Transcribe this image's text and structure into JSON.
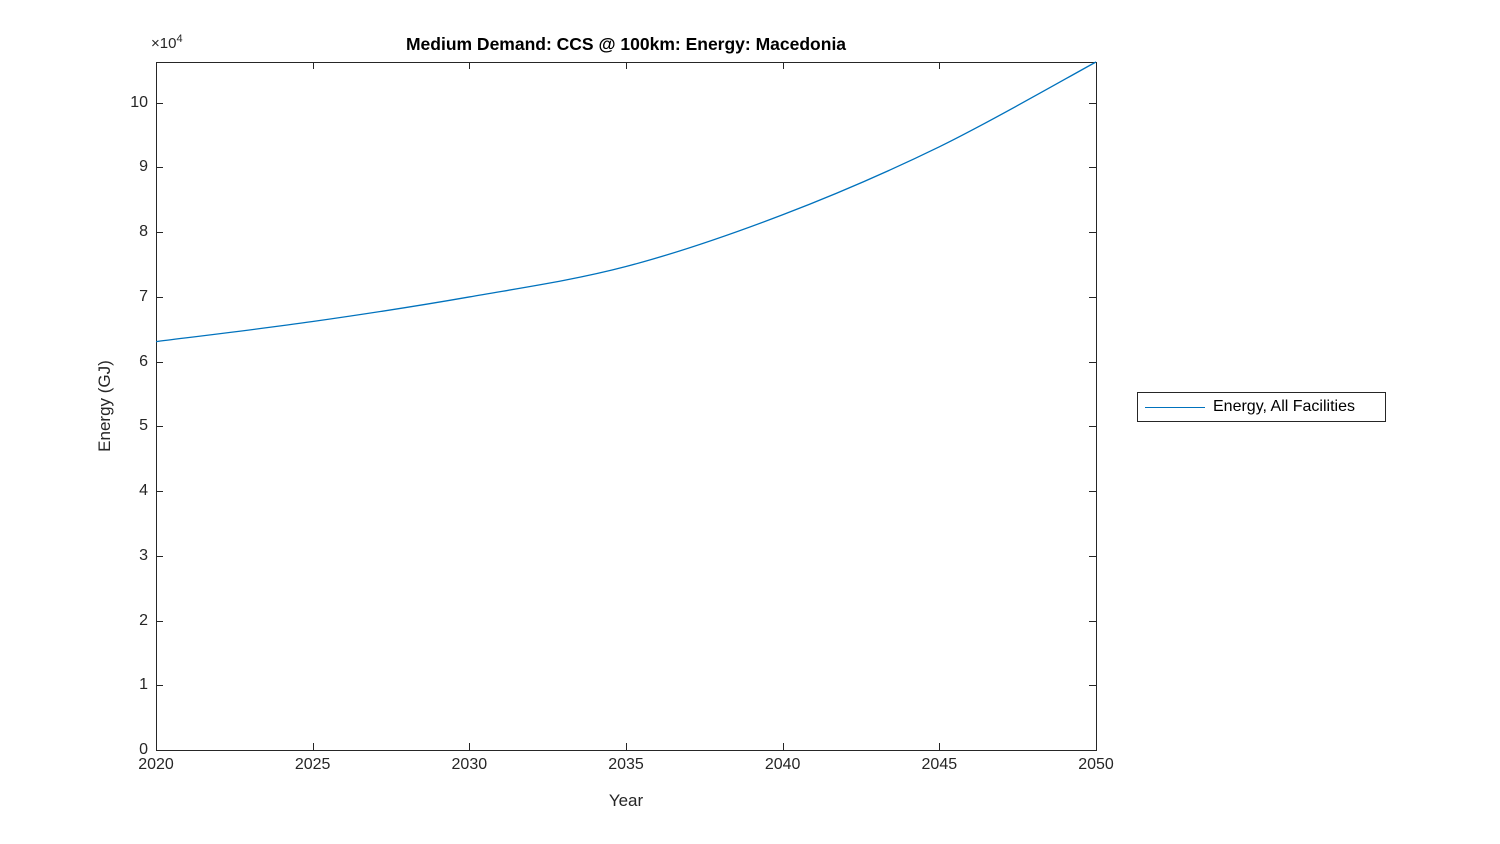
{
  "figure": {
    "background_color": "#ffffff",
    "axis_color": "#262626",
    "text_color": "#262626",
    "title_color": "#000000"
  },
  "chart_data": {
    "type": "line",
    "title": "Medium Demand: CCS @ 100km: Energy: Macedonia",
    "xlabel": "Year",
    "ylabel": "Energy (GJ)",
    "y_multiplier": {
      "base": "×10",
      "exp": "4"
    },
    "x": [
      2020,
      2025,
      2030,
      2035,
      2040,
      2045,
      2050
    ],
    "series": [
      {
        "name": "Energy, All Facilities",
        "color": "#0072BD",
        "values": [
          63100,
          66200,
          70000,
          74700,
          82700,
          93200,
          106300
        ]
      }
    ],
    "xlim": [
      2020,
      2050
    ],
    "ylim": [
      0,
      106300
    ],
    "xticks": [
      2020,
      2025,
      2030,
      2035,
      2040,
      2045,
      2050
    ],
    "xtick_labels": [
      "2020",
      "2025",
      "2030",
      "2035",
      "2040",
      "2045",
      "2050"
    ],
    "ytick_values": [
      0,
      10000,
      20000,
      30000,
      40000,
      50000,
      60000,
      70000,
      80000,
      90000,
      100000
    ],
    "ytick_labels": [
      "0",
      "1",
      "2",
      "3",
      "4",
      "5",
      "6",
      "7",
      "8",
      "9",
      "10"
    ],
    "grid": false,
    "legend_position": "right-outside",
    "legend_entries": [
      "Energy, All Facilities"
    ]
  }
}
